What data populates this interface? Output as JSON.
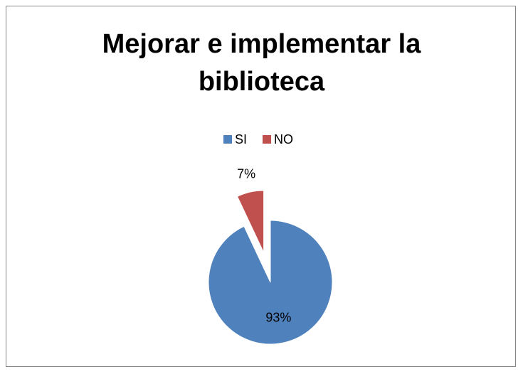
{
  "chart_data": {
    "type": "pie",
    "title": "Mejorar e implementar la biblioteca",
    "categories": [
      "SI",
      "NO"
    ],
    "values": [
      93,
      7
    ],
    "value_labels": [
      "93%",
      "7%"
    ],
    "colors": [
      "#4f81bd",
      "#c0504d"
    ],
    "legend": "top"
  }
}
